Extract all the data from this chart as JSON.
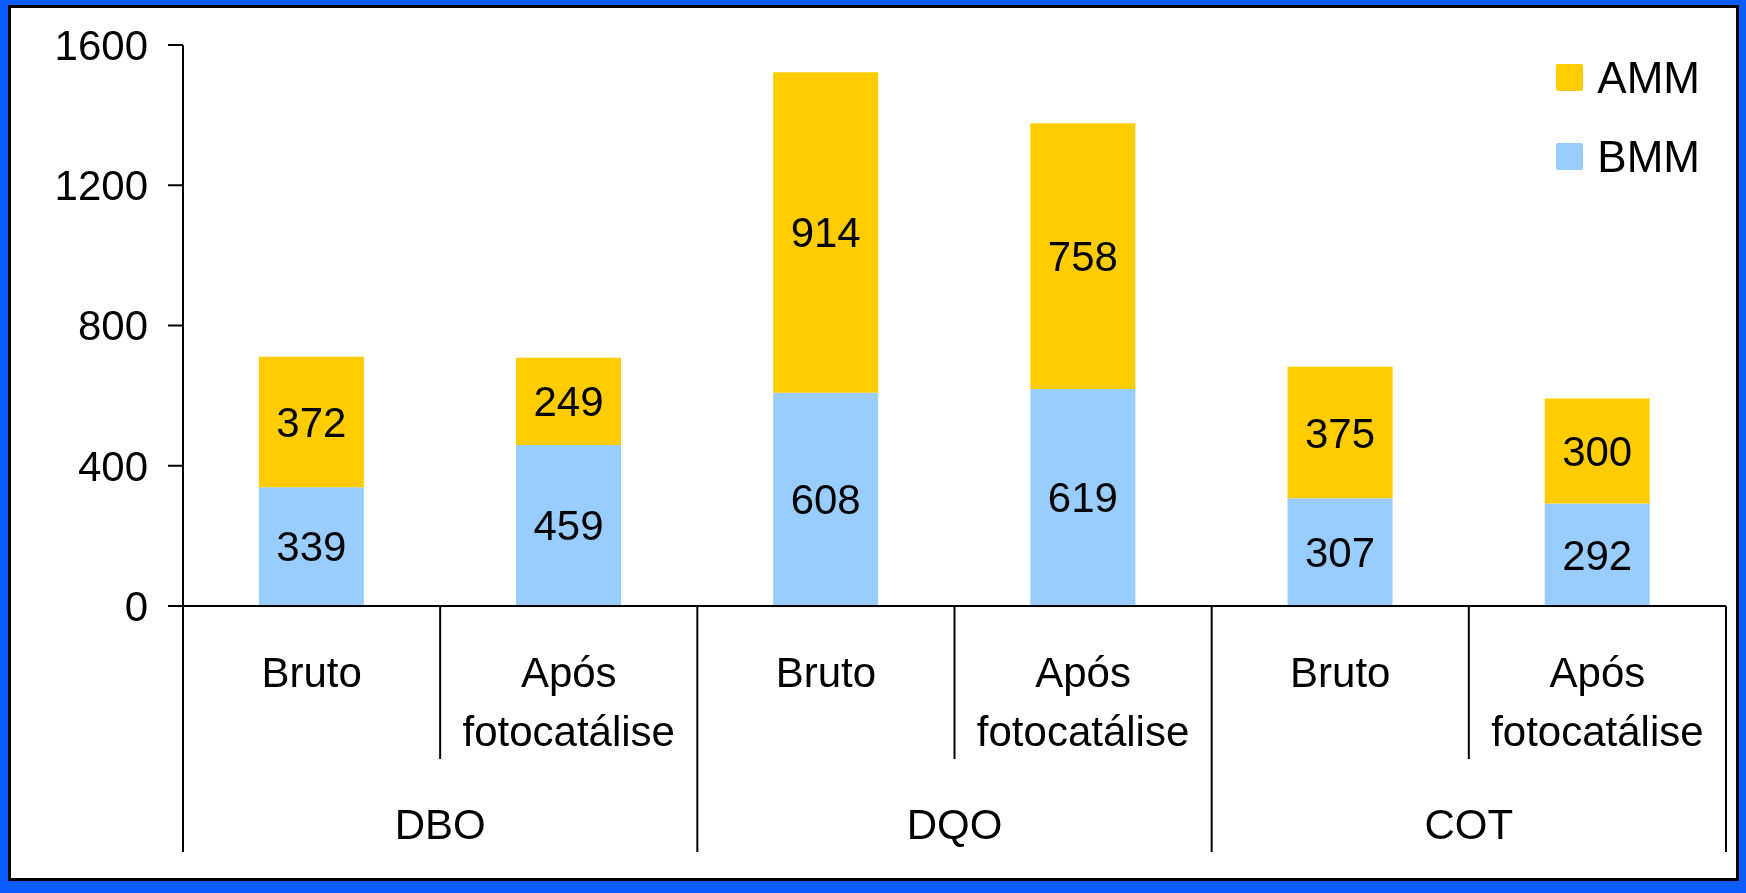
{
  "chart_data": {
    "type": "bar",
    "stacked": true,
    "categories": [
      "Bruto",
      "Após fotocatálise",
      "Bruto",
      "Após fotocatálise",
      "Bruto",
      "Após fotocatálise"
    ],
    "annotations": [
      "DBO",
      "DQO",
      "COT"
    ],
    "series": [
      {
        "name": "BMM",
        "color": "#99ccff",
        "values": [
          339,
          459,
          608,
          619,
          307,
          292
        ]
      },
      {
        "name": "AMM",
        "color": "#ffcc00",
        "values": [
          372,
          249,
          914,
          758,
          375,
          300
        ]
      }
    ],
    "ylim": [
      0,
      1600
    ],
    "yticks": [
      0,
      400,
      800,
      1200,
      1600
    ],
    "legend": "top right",
    "data_labels": true
  }
}
